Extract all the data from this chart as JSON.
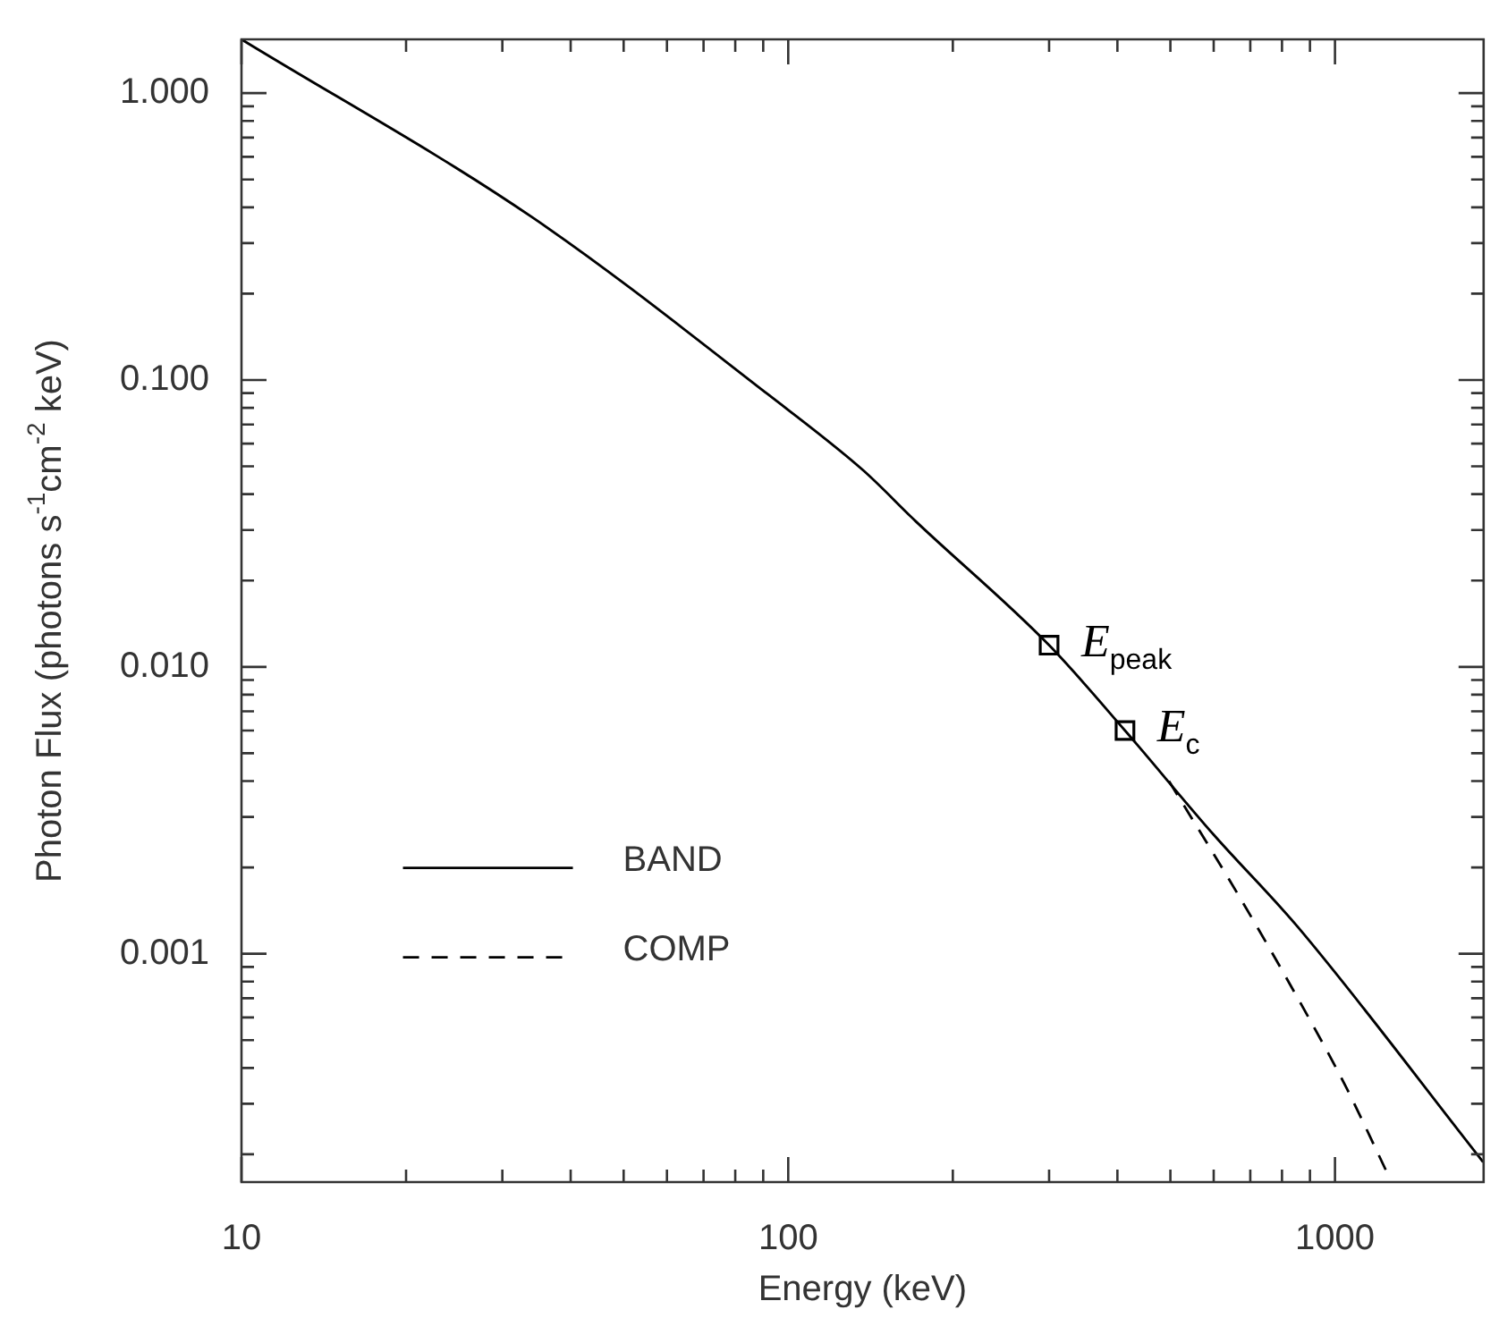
{
  "chart_data": {
    "type": "line",
    "xlabel": "Energy (keV)",
    "ylabel": "Photon Flux (photons s$^{-1}$cm$^{-2}$ keV)",
    "log": "xy",
    "xlim": [
      10,
      1870
    ],
    "ylim": [
      0.00016,
      1.54
    ],
    "xticks": [
      10,
      {
        "value": 20,
        "label": null
      },
      {
        "value": 30,
        "label": null
      },
      {
        "value": 40,
        "label": null
      },
      {
        "value": 50,
        "label": null
      },
      {
        "value": 60,
        "label": null
      },
      {
        "value": 70,
        "label": null
      },
      {
        "value": 80,
        "label": null
      },
      {
        "value": 90,
        "label": null
      },
      100,
      {
        "value": 200,
        "label": null
      },
      {
        "value": 300,
        "label": null
      },
      {
        "value": 400,
        "label": null
      },
      {
        "value": 500,
        "label": null
      },
      {
        "value": 600,
        "label": null
      },
      {
        "value": 700,
        "label": null
      },
      {
        "value": 800,
        "label": null
      },
      {
        "value": 900,
        "label": null
      },
      1000
    ],
    "yticks": [
      {
        "value": 0.0002,
        "label": null
      },
      {
        "value": 0.0003,
        "label": null
      },
      {
        "value": 0.0004,
        "label": null
      },
      {
        "value": 0.0005,
        "label": null
      },
      {
        "value": 0.0006,
        "label": null
      },
      {
        "value": 0.0007,
        "label": null
      },
      {
        "value": 0.0008,
        "label": null
      },
      {
        "value": 0.0009,
        "label": null
      },
      {
        "value": 0.001,
        "label": "0.001"
      },
      {
        "value": 0.002,
        "label": null
      },
      {
        "value": 0.003,
        "label": null
      },
      {
        "value": 0.004,
        "label": null
      },
      {
        "value": 0.005,
        "label": null
      },
      {
        "value": 0.006,
        "label": null
      },
      {
        "value": 0.007,
        "label": null
      },
      {
        "value": 0.008,
        "label": null
      },
      {
        "value": 0.009,
        "label": null
      },
      {
        "value": 0.01,
        "label": "0.010"
      },
      {
        "value": 0.02,
        "label": null
      },
      {
        "value": 0.03,
        "label": null
      },
      {
        "value": 0.04,
        "label": null
      },
      {
        "value": 0.05,
        "label": null
      },
      {
        "value": 0.06,
        "label": null
      },
      {
        "value": 0.07,
        "label": null
      },
      {
        "value": 0.08,
        "label": null
      },
      {
        "value": 0.09,
        "label": null
      },
      {
        "value": 0.1,
        "label": "0.100"
      },
      {
        "value": 0.2,
        "label": null
      },
      {
        "value": 0.3,
        "label": null
      },
      {
        "value": 0.4,
        "label": null
      },
      {
        "value": 0.5,
        "label": null
      },
      {
        "value": 0.6,
        "label": null
      },
      {
        "value": 0.7,
        "label": null
      },
      {
        "value": 0.8,
        "label": null
      },
      {
        "value": 0.9,
        "label": null
      },
      {
        "value": 1,
        "label": "1.000"
      }
    ],
    "series": [
      {
        "name": "BAND",
        "color": "#000000",
        "line_style": "solid",
        "marker": "none",
        "x": [
          10,
          34.1,
          91.9,
          137,
          171,
          300,
          413,
          600,
          855,
          1866
        ],
        "values": [
          1.54,
          0.368,
          0.089,
          0.0485,
          0.0322,
          0.0119,
          0.006,
          0.0026,
          0.00124,
          0.000188
        ]
      },
      {
        "name": "COMP",
        "color": "#000000",
        "line_style": "dashed",
        "marker": "none",
        "x": [
          497,
          670,
          855,
          1046,
          1250
        ],
        "values": [
          0.004,
          0.00157,
          0.0007,
          0.000345,
          0.00017
        ]
      },
      {
        "type": "scatter",
        "color": "#000000",
        "marker": "square",
        "x": [
          300,
          413
        ],
        "values": [
          0.0119,
          0.006
        ]
      }
    ],
    "annotations": [
      {
        "text": "E$_{peak}$",
        "x": 300,
        "y": 0.0119
      },
      {
        "text": "E$_{c}$",
        "x": 413,
        "y": 0.006
      }
    ],
    "legend": "bottom left"
  }
}
